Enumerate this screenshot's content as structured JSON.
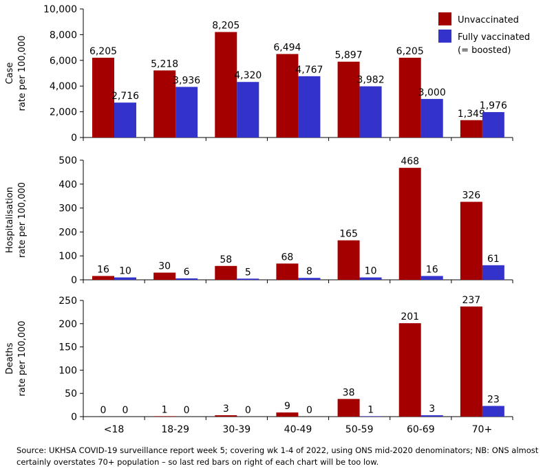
{
  "chart_data": {
    "type": "bar",
    "categories": [
      "<18",
      "18-29",
      "30-39",
      "40-49",
      "50-59",
      "60-69",
      "70+"
    ],
    "legend": {
      "placement": "top-right",
      "entries": [
        "Unvaccinated",
        "Fully vaccinated",
        "(= boosted)"
      ]
    },
    "colors": {
      "unvaccinated": "#a50000",
      "vaccinated": "#3333cc",
      "axis": "#000000"
    },
    "panels": [
      {
        "id": "case",
        "ylabel": [
          "Case",
          "rate per 100,000"
        ],
        "ylim": [
          0,
          10000
        ],
        "ticks": [
          "0",
          "2,000",
          "4,000",
          "6,000",
          "8,000",
          "10,000"
        ],
        "series": [
          {
            "name": "Unvaccinated",
            "values": [
              6205,
              5218,
              8205,
              6494,
              5897,
              6205,
              1349
            ],
            "labels": [
              "6,205",
              "5,218",
              "8,205",
              "6,494",
              "5,897",
              "6,205",
              "1,349"
            ]
          },
          {
            "name": "Fully vaccinated",
            "values": [
              2716,
              3936,
              4320,
              4767,
              3982,
              3000,
              1976
            ],
            "labels": [
              "2,716",
              "3,936",
              "4,320",
              "4,767",
              "3,982",
              "3,000",
              "1,976"
            ]
          }
        ]
      },
      {
        "id": "hospitalisation",
        "ylabel": [
          "Hospitalisation",
          "rate per 100,000"
        ],
        "ylim": [
          0,
          500
        ],
        "ticks": [
          "0",
          "100",
          "200",
          "300",
          "400",
          "500"
        ],
        "series": [
          {
            "name": "Unvaccinated",
            "values": [
              16,
              30,
              58,
              68,
              165,
              468,
              326
            ],
            "labels": [
              "16",
              "30",
              "58",
              "68",
              "165",
              "468",
              "326"
            ]
          },
          {
            "name": "Fully vaccinated",
            "values": [
              10,
              6,
              5,
              8,
              10,
              16,
              61
            ],
            "labels": [
              "10",
              "6",
              "5",
              "8",
              "10",
              "16",
              "61"
            ]
          }
        ]
      },
      {
        "id": "deaths",
        "ylabel": [
          "Deaths",
          "rate per 100,000"
        ],
        "ylim": [
          0,
          250
        ],
        "ticks": [
          "0",
          "50",
          "100",
          "150",
          "200",
          "250"
        ],
        "series": [
          {
            "name": "Unvaccinated",
            "values": [
              0,
              1,
              3,
              9,
              38,
              201,
              237
            ],
            "labels": [
              "0",
              "1",
              "3",
              "9",
              "38",
              "201",
              "237"
            ]
          },
          {
            "name": "Fully vaccinated",
            "values": [
              0,
              0,
              0,
              0,
              1,
              3,
              23
            ],
            "labels": [
              "0",
              "0",
              "0",
              "0",
              "1",
              "3",
              "23"
            ]
          }
        ]
      }
    ]
  },
  "source_note": "Source: UKHSA COVID-19 surveillance report week 5; covering wk 1-4 of 2022, using ONS mid-2020 denominators; NB: ONS almost certainly overstates 70+ population – so last red bars on right of each chart will be too low."
}
